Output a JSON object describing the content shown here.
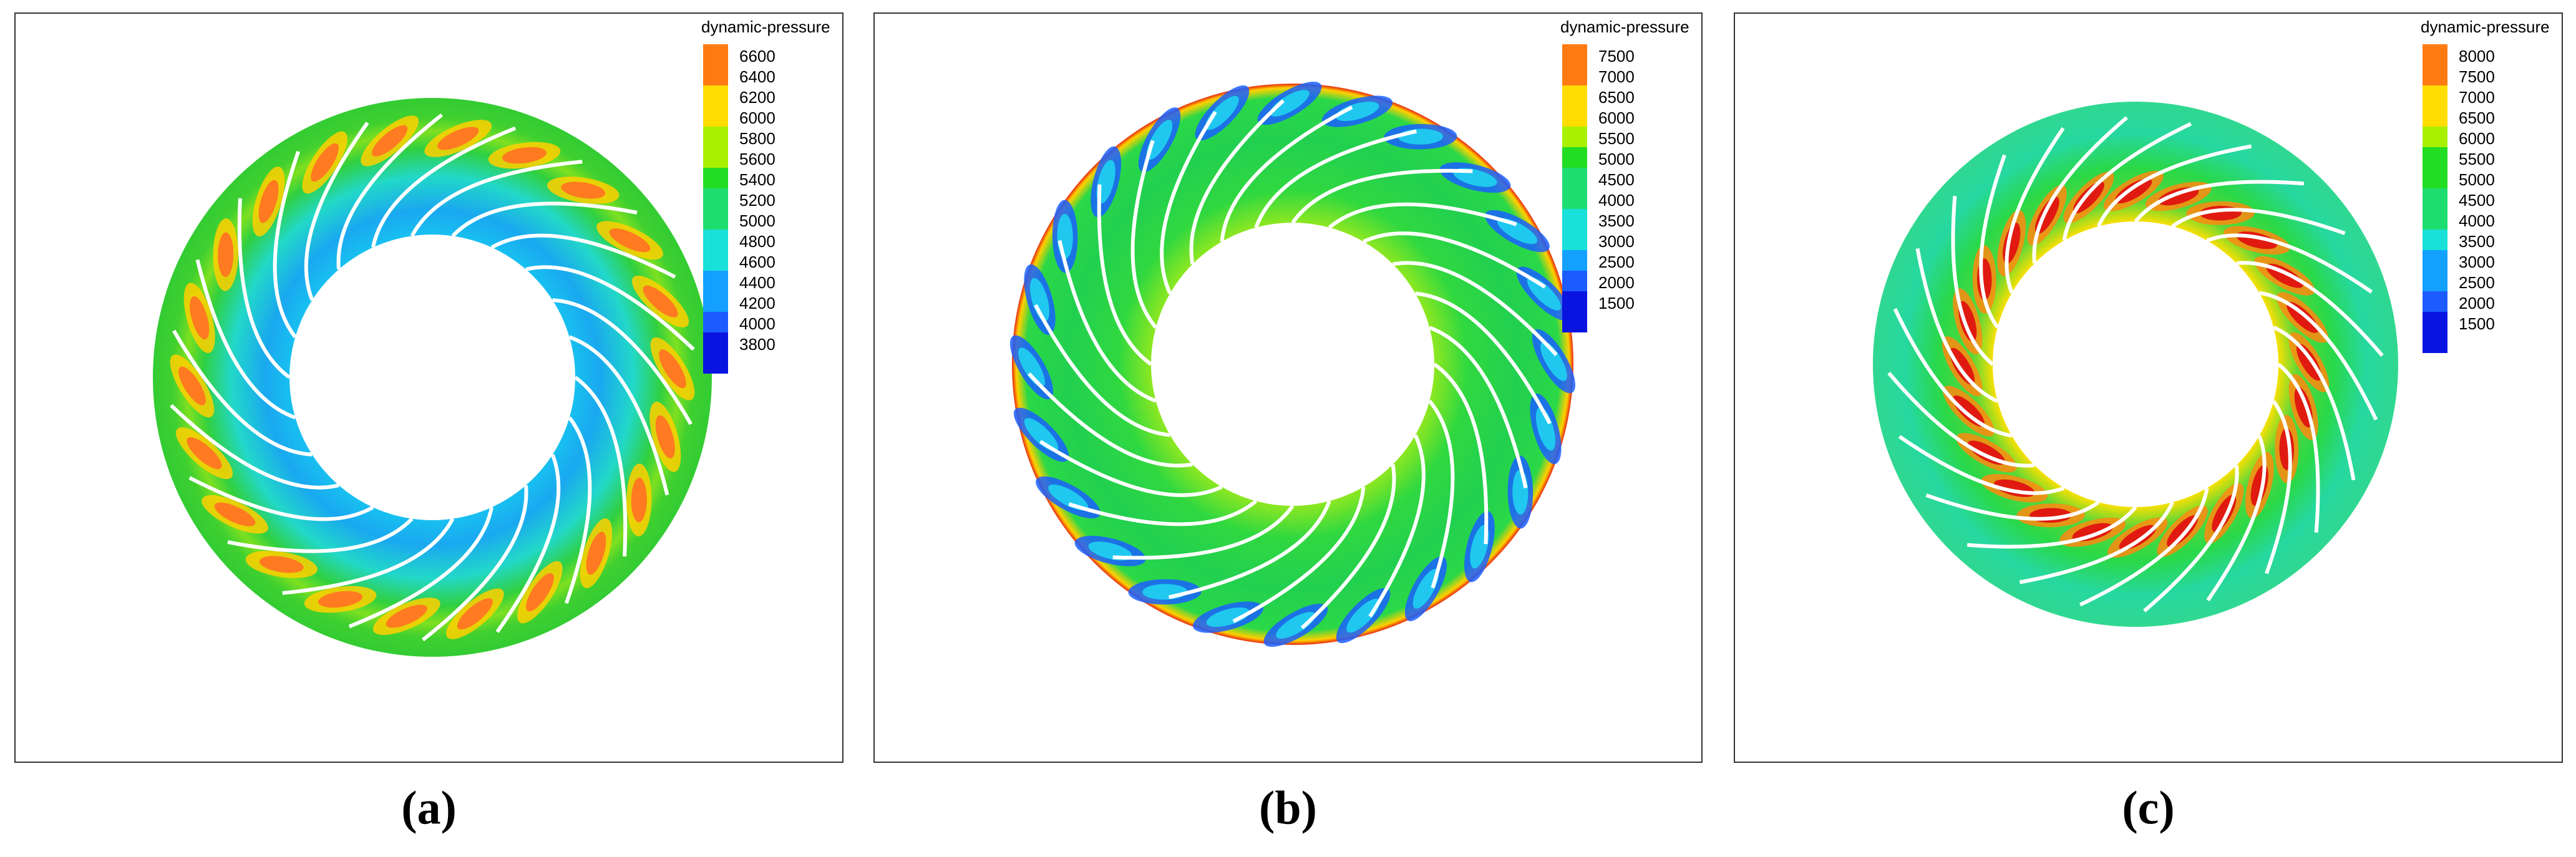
{
  "panels": [
    {
      "legend": {
        "title": "dynamic-pressure",
        "levels": [
          6600,
          6400,
          6200,
          6000,
          5800,
          5600,
          5400,
          5200,
          5000,
          4800,
          4600,
          4400,
          4200,
          4000,
          3800
        ]
      },
      "caption": "(a)"
    },
    {
      "legend": {
        "title": "dynamic-pressure",
        "levels": [
          7500,
          7000,
          6500,
          6000,
          5500,
          5000,
          4500,
          4000,
          3500,
          3000,
          2500,
          2000,
          1500
        ]
      },
      "caption": "(b)"
    },
    {
      "legend": {
        "title": "dynamic-pressure",
        "levels": [
          8000,
          7500,
          7000,
          6500,
          6000,
          5500,
          5000,
          4500,
          4000,
          3500,
          3000,
          2500,
          2000,
          1500
        ]
      },
      "caption": "(c)"
    }
  ]
}
